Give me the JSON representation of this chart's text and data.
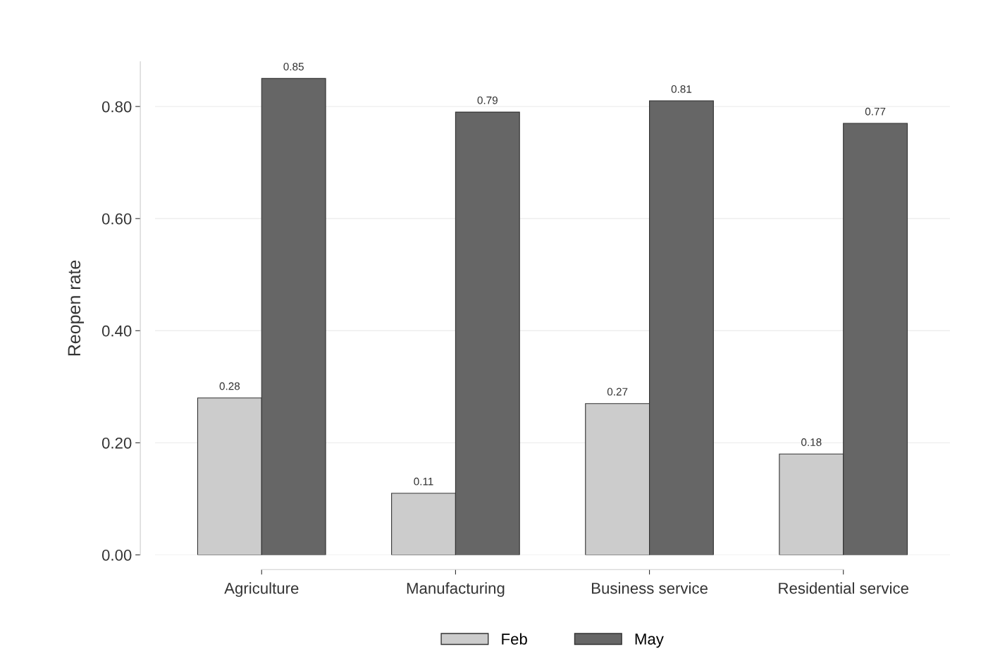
{
  "chart_data": {
    "type": "bar",
    "ylabel": "Reopen rate",
    "categories": [
      "Agriculture",
      "Manufacturing",
      "Business service",
      "Residential service"
    ],
    "series": [
      {
        "name": "Feb",
        "color": "#cccccc",
        "values": [
          0.28,
          0.11,
          0.27,
          0.18
        ]
      },
      {
        "name": "May",
        "color": "#666666",
        "values": [
          0.85,
          0.79,
          0.81,
          0.77
        ]
      }
    ],
    "ylim": [
      0,
      0.88
    ],
    "yticks": [
      {
        "value": 0,
        "label": "0.00"
      },
      {
        "value": 0.2,
        "label": "0.20"
      },
      {
        "value": 0.4,
        "label": "0.40"
      },
      {
        "value": 0.6,
        "label": "0.60"
      },
      {
        "value": 0.8,
        "label": "0.80"
      }
    ],
    "grid": "y",
    "legend": "bottom",
    "data_labels": true
  }
}
